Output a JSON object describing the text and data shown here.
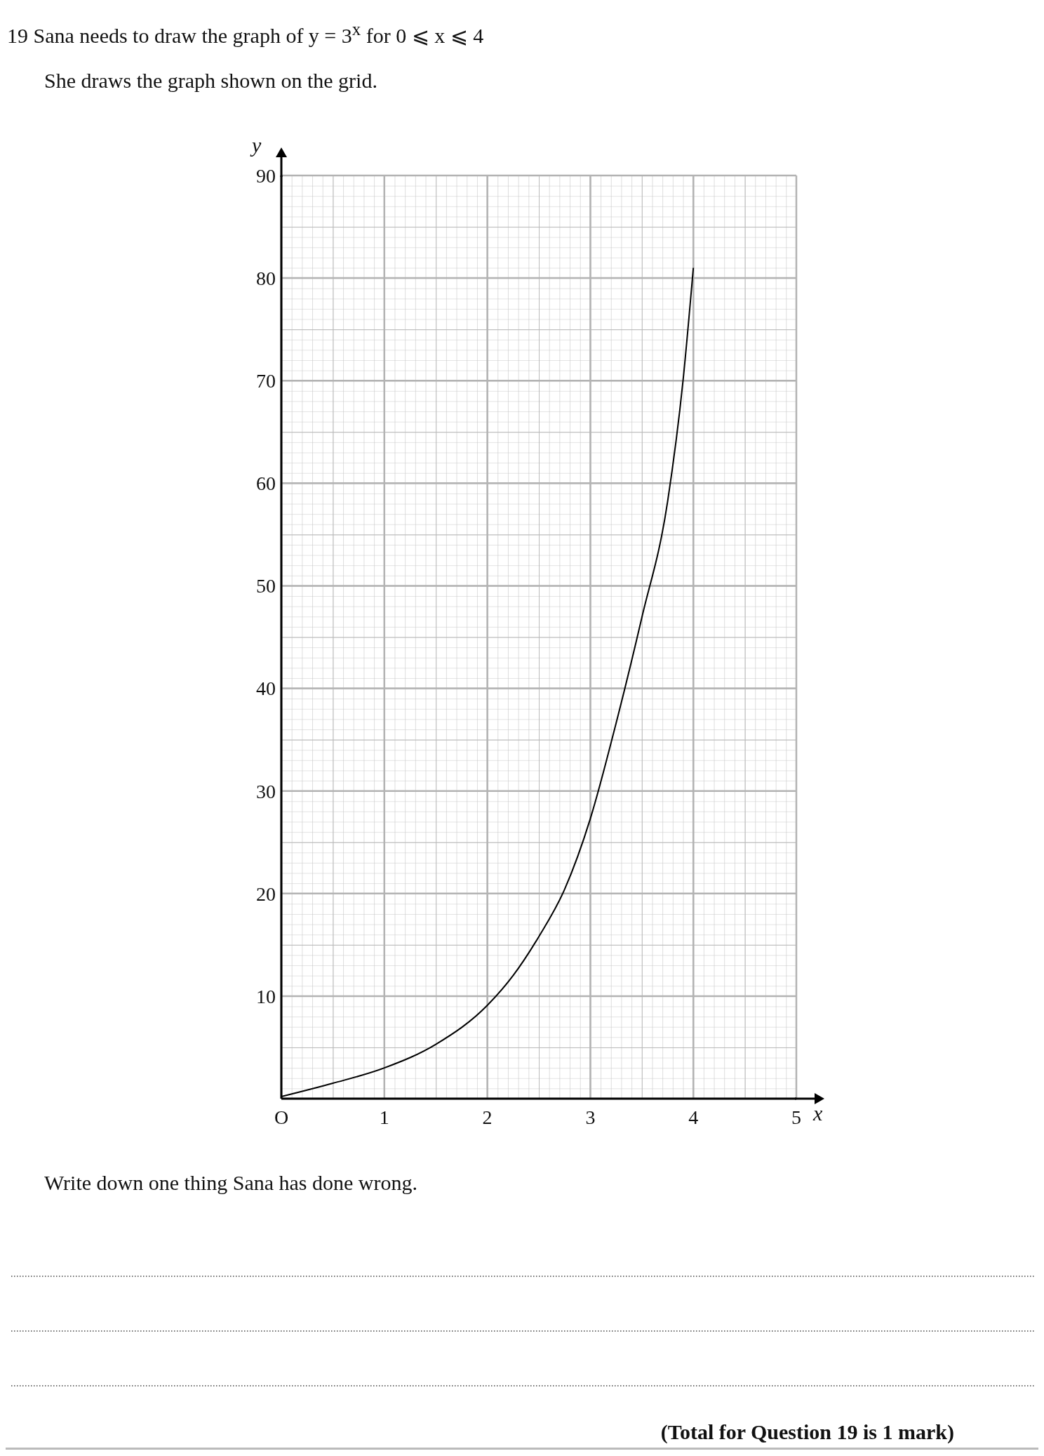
{
  "chart_data": {
    "type": "line",
    "title": "19 Sana needs to draw the graph of y = 3$^{x}$ for 0 ⩽ x ⩽ 4",
    "subtitle": "She draws the graph shown on the grid.",
    "xlabel": "x",
    "ylabel": "y",
    "annotations": [
      "Write down one thing Sana has done wrong.",
      "(Total for Question 19 is 1 mark)"
    ],
    "x": [
      0,
      0.5,
      1,
      1.5,
      2,
      2.25,
      2.5,
      2.75,
      3,
      3.25,
      3.5,
      3.75,
      3.9,
      4
    ],
    "series": [
      {
        "color": "#000000",
        "values": [
          0.2,
          1.5,
          3,
          5.3,
          9.1,
          12,
          15.8,
          20.4,
          27.3,
          36.6,
          46.9,
          58.2,
          70,
          81
        ]
      }
    ],
    "xlim": [
      0,
      5
    ],
    "ylim": [
      0,
      90
    ],
    "xticks": [
      {
        "value": 0,
        "label": "O"
      },
      1,
      2,
      3,
      4,
      5
    ],
    "yticks": [
      10,
      20,
      30,
      40,
      50,
      60,
      70,
      80,
      90
    ],
    "grid": true
  }
}
